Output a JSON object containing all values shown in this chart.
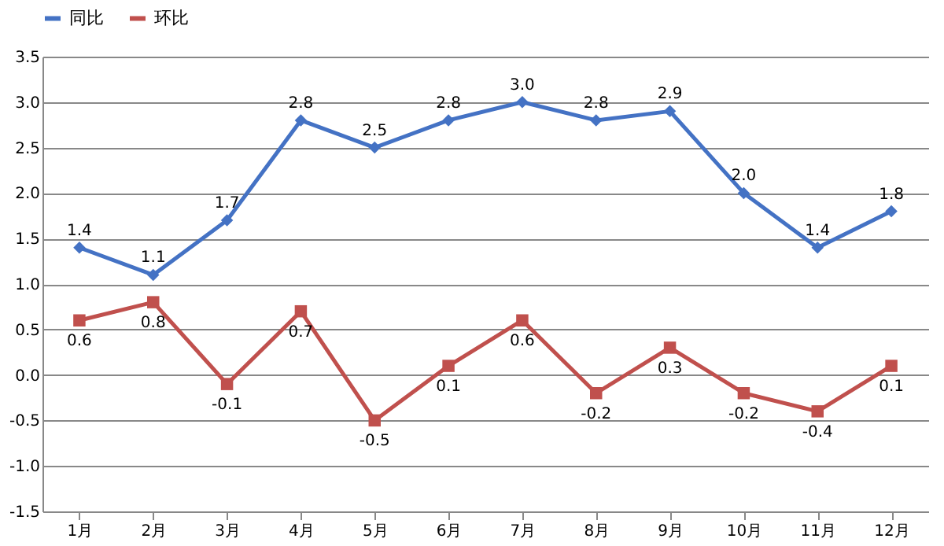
{
  "chart_data": {
    "type": "line",
    "categories": [
      "1月",
      "2月",
      "3月",
      "4月",
      "5月",
      "6月",
      "7月",
      "8月",
      "9月",
      "10月",
      "11月",
      "12月"
    ],
    "series": [
      {
        "name": "同比",
        "color": "#4472c4",
        "marker": "diamond",
        "values": [
          1.4,
          1.1,
          1.7,
          2.8,
          2.5,
          2.8,
          3.0,
          2.8,
          2.9,
          2.0,
          1.4,
          1.8
        ],
        "value_labels": [
          "1.4",
          "1.1",
          "1.7",
          "2.8",
          "2.5",
          "2.8",
          "3.0",
          "2.8",
          "2.9",
          "2.0",
          "1.4",
          "1.8"
        ]
      },
      {
        "name": "环比",
        "color": "#c0504d",
        "marker": "square",
        "values": [
          0.6,
          0.8,
          -0.1,
          0.7,
          -0.5,
          0.1,
          0.6,
          -0.2,
          0.3,
          -0.2,
          -0.4,
          0.1
        ],
        "value_labels": [
          "0.6",
          "0.8",
          "-0.1",
          "0.7",
          "-0.5",
          "0.1",
          "0.6",
          "-0.2",
          "0.3",
          "-0.2",
          "-0.4",
          "0.1"
        ]
      }
    ],
    "ylim": [
      -1.5,
      3.5
    ],
    "yticks": [
      {
        "value": -1.5,
        "label": "-1.5"
      },
      {
        "value": -1,
        "label": "-1.0"
      },
      {
        "value": -0.5,
        "label": "-0.5"
      },
      {
        "value": 0,
        "label": "0.0"
      },
      {
        "value": 0.5,
        "label": "0.5"
      },
      {
        "value": 1,
        "label": "1.0"
      },
      {
        "value": 1.5,
        "label": "1.5"
      },
      {
        "value": 2,
        "label": "2.0"
      },
      {
        "value": 2.5,
        "label": "2.5"
      },
      {
        "value": 3,
        "label": "3.0"
      },
      {
        "value": 3.5,
        "label": "3.5"
      }
    ],
    "grid": "y",
    "legend": "top",
    "line_style": "solid"
  }
}
